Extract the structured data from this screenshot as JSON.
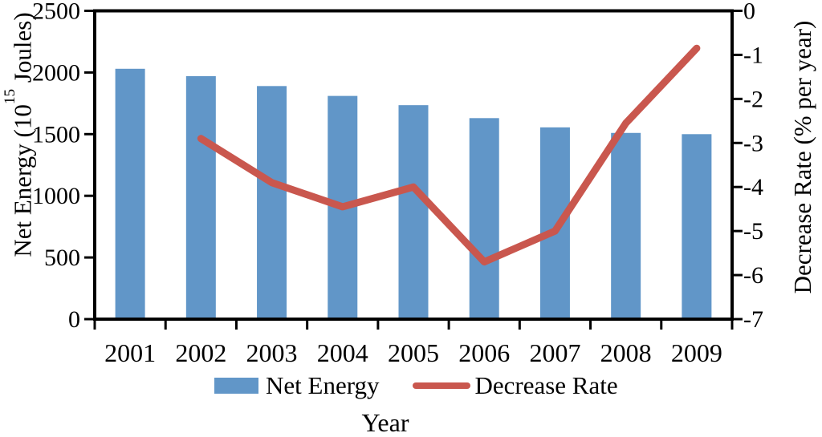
{
  "figure": {
    "background": "#ffffff",
    "text_color": "#000000"
  },
  "chart_data": {
    "type": "combo-bar-line",
    "title": "",
    "categories": [
      "2001",
      "2002",
      "2003",
      "2004",
      "2005",
      "2006",
      "2007",
      "2008",
      "2009"
    ],
    "series": [
      {
        "name": "Net Energy",
        "type": "bar",
        "axis": "left",
        "color": "#6196C8",
        "values": [
          2030,
          1970,
          1890,
          1810,
          1735,
          1630,
          1555,
          1510,
          1500
        ]
      },
      {
        "name": "Decrease Rate",
        "type": "line",
        "axis": "right",
        "color": "#C9574E",
        "values": [
          null,
          -2.9,
          -3.9,
          -4.45,
          -4.0,
          -5.7,
          -5.0,
          -2.55,
          -0.85
        ]
      }
    ],
    "x_axis": {
      "title": "Year",
      "tick_labels": [
        "2001",
        "2002",
        "2003",
        "2004",
        "2005",
        "2006",
        "2007",
        "2008",
        "2009"
      ]
    },
    "y_left": {
      "title": "Net Energy (10^15 Joules)",
      "title_parts": {
        "prefix": "Net Energy (10",
        "sup": "15",
        "suffix": " Joules)"
      },
      "min": 0,
      "max": 2500,
      "tick_step": 500,
      "tick_labels": [
        "0",
        "500",
        "1000",
        "1500",
        "2000",
        "2500"
      ]
    },
    "y_right": {
      "title": "Decrease Rate (% per year)",
      "min": -7,
      "max": 0,
      "tick_step": 1,
      "tick_labels": [
        "0",
        "-1",
        "-2",
        "-3",
        "-4",
        "-5",
        "-6",
        "-7"
      ]
    },
    "legend": [
      {
        "label": "Net Energy",
        "swatch": "bar",
        "color": "#6196C8"
      },
      {
        "label": "Decrease Rate",
        "swatch": "line",
        "color": "#C9574E"
      }
    ],
    "grid": false,
    "legend_position": "bottom"
  }
}
